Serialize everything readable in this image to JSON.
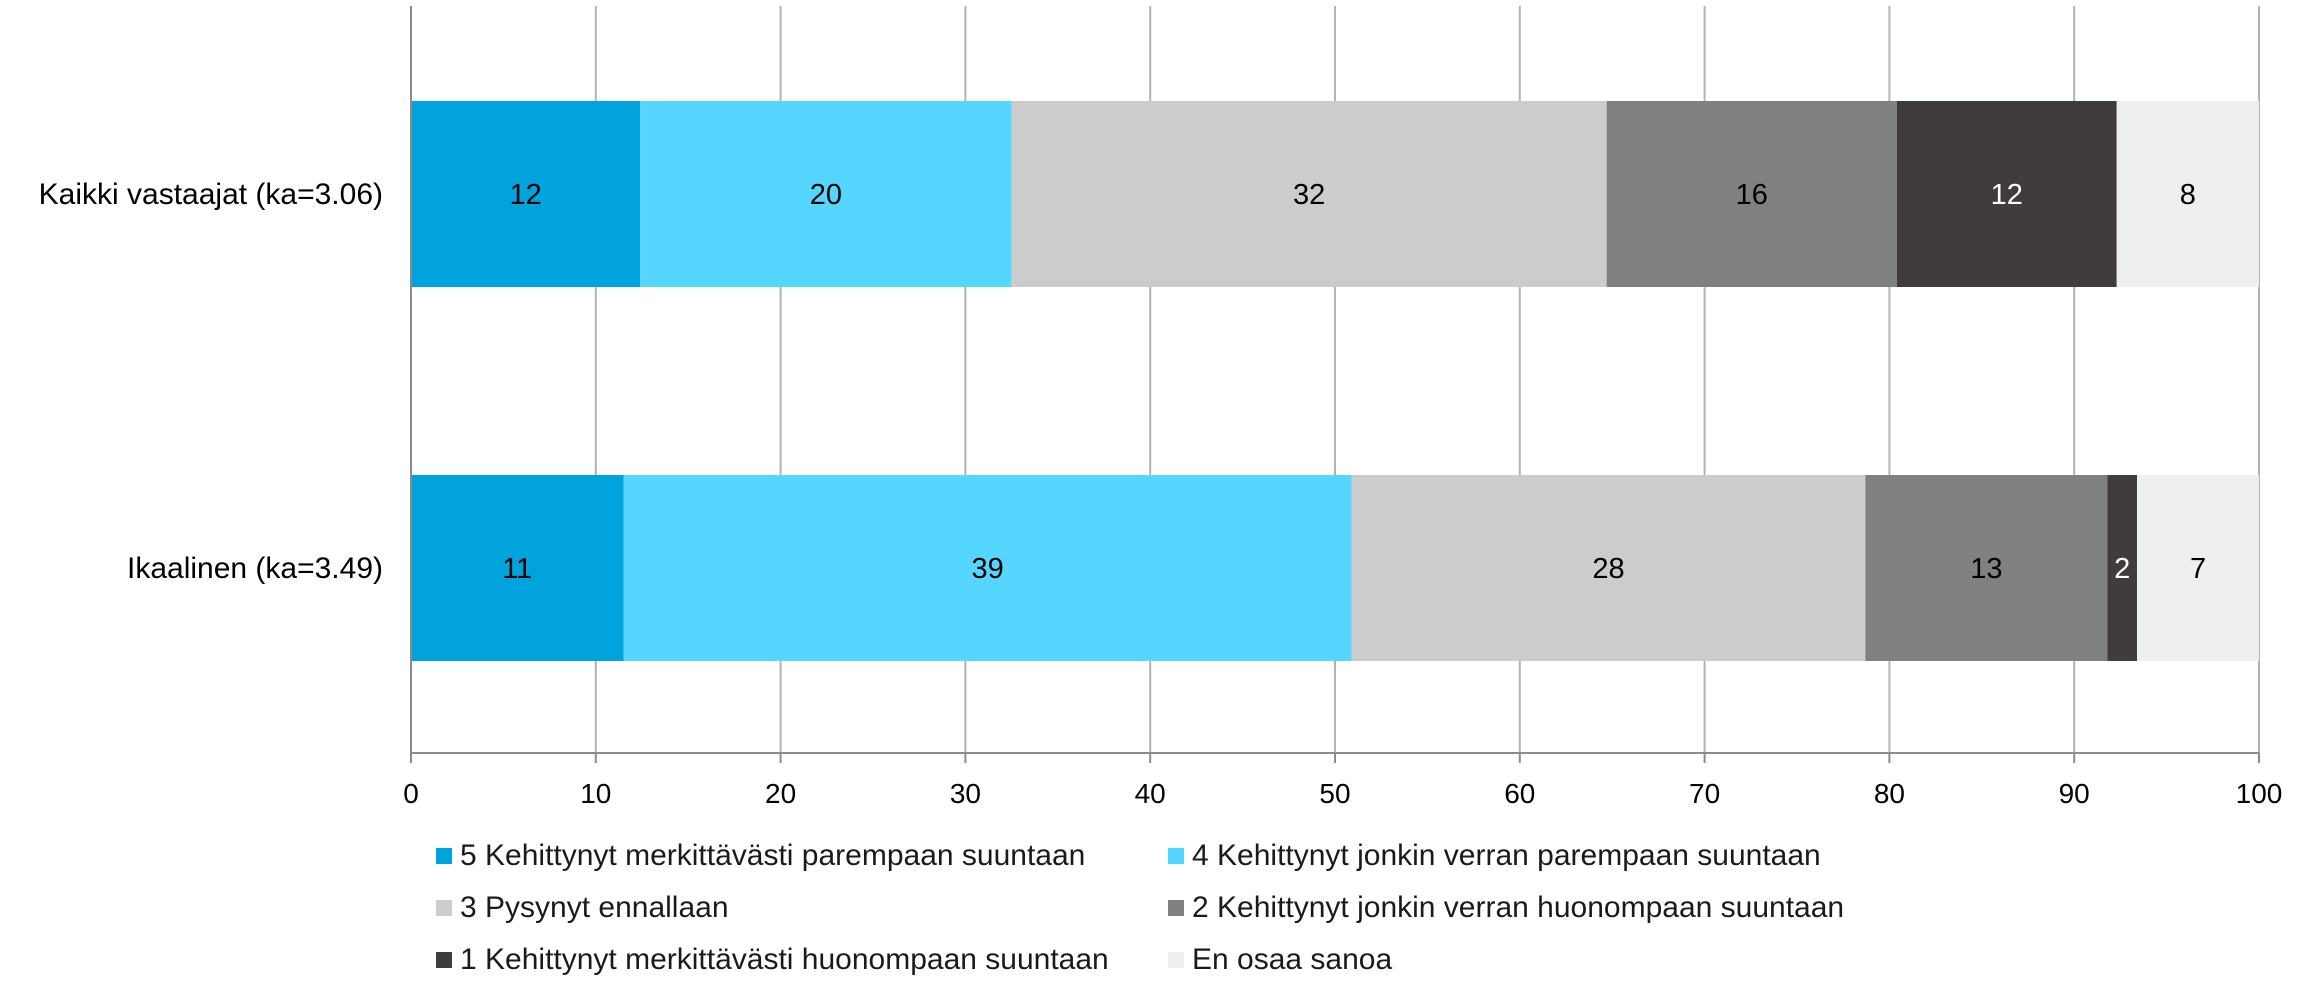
{
  "chart_data": {
    "type": "bar",
    "orientation": "horizontal",
    "stacked": true,
    "categories": [
      "Kaikki vastaajat (ka=3.06)",
      "Ikaalinen (ka=3.49)"
    ],
    "series": [
      {
        "name": "5 Kehittynyt merkittävästi parempaan suuntaan",
        "color": "#00a3db",
        "label_color": "#000000",
        "values": [
          12,
          11
        ],
        "segments": [
          12.4,
          11.5
        ]
      },
      {
        "name": "4 Kehittynyt jonkin verran parempaan suuntaan",
        "color": "#55d6ff",
        "label_color": "#000000",
        "values": [
          20,
          39
        ],
        "segments": [
          20.1,
          39.4
        ]
      },
      {
        "name": "3 Pysynyt ennallaan",
        "color": "#cccccc",
        "label_color": "#000000",
        "values": [
          32,
          28
        ],
        "segments": [
          32.2,
          27.8
        ]
      },
      {
        "name": "2 Kehittynyt jonkin verran huonompaan suuntaan",
        "color": "#808080",
        "label_color": "#000000",
        "values": [
          16,
          13
        ],
        "segments": [
          15.7,
          13.1
        ]
      },
      {
        "name": "1 Kehittynyt merkittävästi huonompaan suuntaan",
        "color": "#403c3d",
        "label_color": "#ffffff",
        "values": [
          12,
          2
        ],
        "segments": [
          11.9,
          1.6
        ]
      },
      {
        "name": "En osaa sanoa",
        "color": "#efefef",
        "label_color": "#000000",
        "values": [
          8,
          7
        ],
        "segments": [
          7.7,
          6.6
        ]
      }
    ],
    "xlim": [
      0,
      100
    ],
    "xticks": [
      "0",
      "10",
      "20",
      "30",
      "40",
      "50",
      "60",
      "70",
      "80",
      "90",
      "100"
    ],
    "grid": true,
    "legend_position": "bottom"
  }
}
